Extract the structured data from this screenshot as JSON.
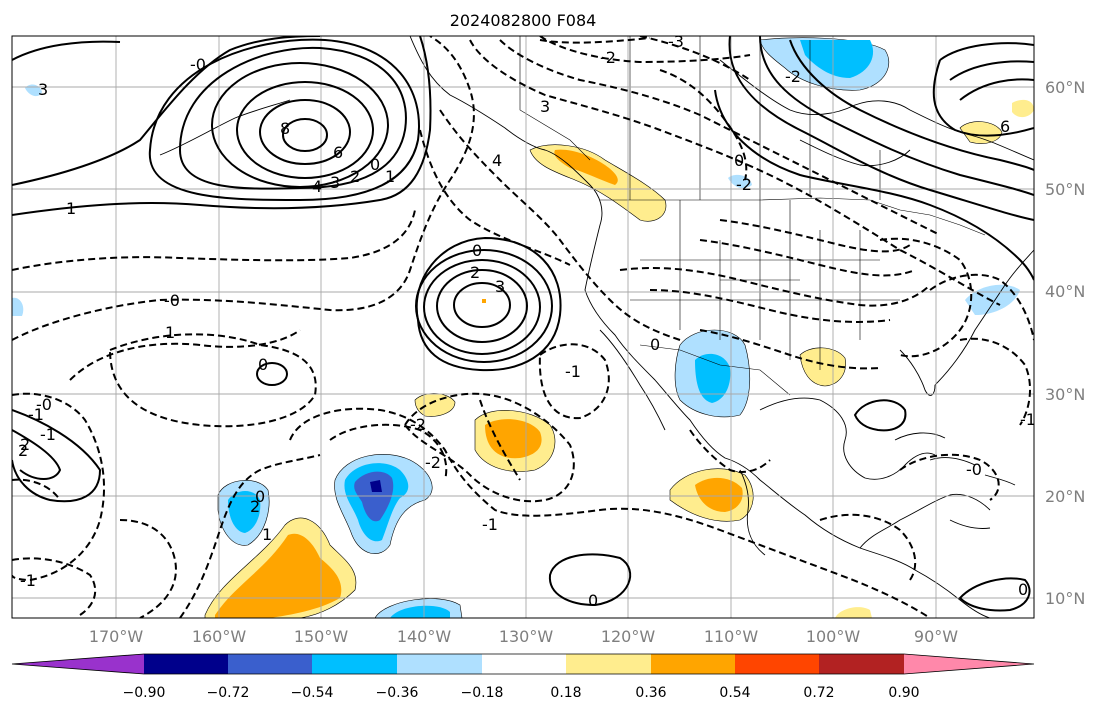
{
  "title": "2024082800 F084",
  "map": {
    "lat_labels": [
      "60°N",
      "50°N",
      "40°N",
      "30°N",
      "20°N",
      "10°N"
    ],
    "lon_labels": [
      "170°W",
      "160°W",
      "150°W",
      "140°W",
      "130°W",
      "120°W",
      "110°W",
      "100°W",
      "90°W"
    ],
    "contour_labels": [
      "-0",
      "3",
      "8",
      "6",
      "4",
      "3",
      "2",
      "0",
      "1",
      "1",
      "-0",
      "-2",
      "-3",
      "3",
      "4",
      "0",
      "2",
      "3",
      "0",
      "-1",
      "0",
      "1",
      "2",
      "-1",
      "-0",
      "-1",
      "-2",
      "1",
      "0",
      "-2",
      "2",
      "-1",
      "0",
      "-1",
      "2",
      "0",
      "-1",
      "-0",
      "6",
      "-2",
      "-2",
      "0"
    ]
  },
  "colorbar": {
    "ticks": [
      "−0.90",
      "−0.72",
      "−0.54",
      "−0.36",
      "−0.18",
      "0.18",
      "0.36",
      "0.54",
      "0.72",
      "0.90"
    ],
    "colors": {
      "under": "#9932cc",
      "bins": [
        "#00008b",
        "#3a5fcd",
        "#00bfff",
        "#afe0ff",
        "#ffffff",
        "#ffed8e",
        "#ffa500",
        "#ff4500",
        "#b22222",
        "#ff88aa"
      ],
      "over": "#ff88aa"
    }
  }
}
